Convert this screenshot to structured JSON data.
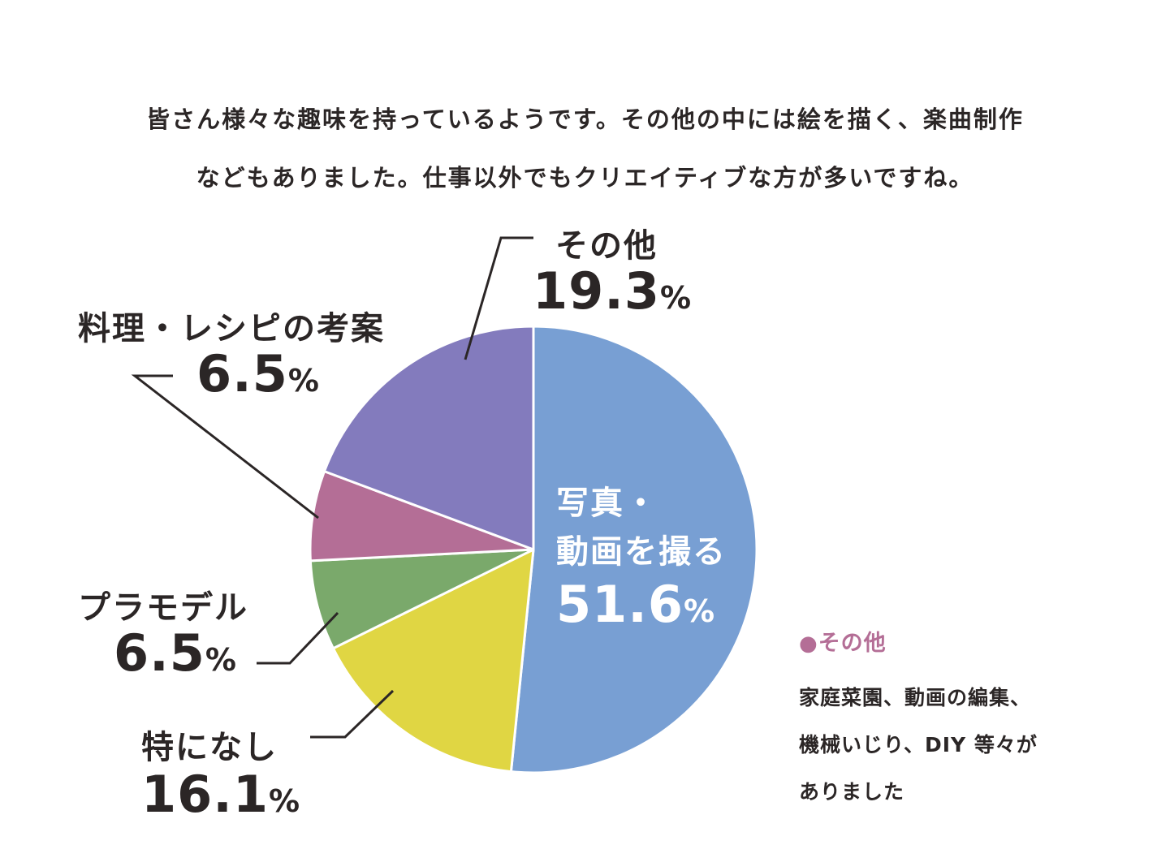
{
  "intro": {
    "line1": "皆さん様々な趣味を持っているようです。その他の中には絵を描く、楽曲制作",
    "line2": "などもありました。仕事以外でもクリエイティブな方が多いですね。"
  },
  "chart_data": {
    "type": "pie",
    "title": "",
    "start_angle_deg": 0,
    "direction": "clockwise",
    "slices": [
      {
        "name": "写真・動画を撮る",
        "name_line1": "写真・",
        "name_line2": "動画を撮る",
        "value": 51.6,
        "value_label": "51.6",
        "color": "#789fd3"
      },
      {
        "name": "特になし",
        "value": 16.1,
        "value_label": "16.1",
        "color": "#e0d643"
      },
      {
        "name": "プラモデル",
        "value": 6.5,
        "value_label": "6.5",
        "color": "#7aa96b"
      },
      {
        "name": "料理・レシピの考案",
        "value": 6.5,
        "value_label": "6.5",
        "color": "#b46e96"
      },
      {
        "name": "その他",
        "value": 19.3,
        "value_label": "19.3",
        "color": "#837bbd"
      }
    ],
    "percent_sign": "%"
  },
  "legend": {
    "dot": "●",
    "title": "その他",
    "lines": [
      "家庭菜園、動画の編集、",
      "機械いじり、DIY 等々が",
      "ありました"
    ]
  }
}
